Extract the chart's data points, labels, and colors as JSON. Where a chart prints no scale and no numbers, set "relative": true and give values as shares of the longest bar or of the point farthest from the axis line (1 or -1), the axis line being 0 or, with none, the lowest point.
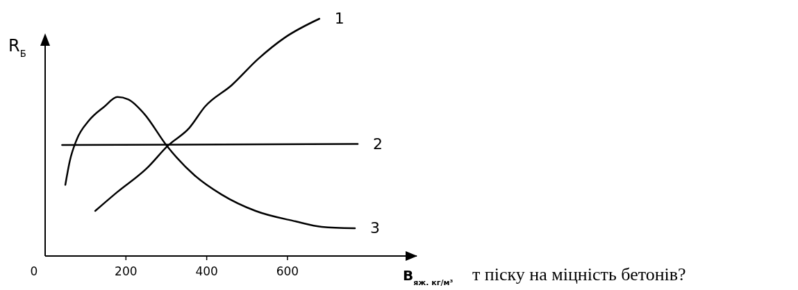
{
  "chart_data": {
    "type": "line",
    "relative": true,
    "xlabel": "В$_{яж. кг/м³}$",
    "ylabel": "R$_{Б}$",
    "xlim": [
      0,
      920
    ],
    "xticks": [
      {
        "value": 0,
        "label": "0"
      },
      200,
      400,
      600
    ],
    "annotations": [
      "т піску на міцність бетонів?"
    ],
    "grid": false,
    "series": [
      {
        "name": "1",
        "color": "#000000",
        "x": [
          124,
          179,
          252,
          304,
          357,
          396,
          462,
          527,
          593,
          679
        ],
        "values": [
          0.19,
          0.27,
          0.37,
          0.465,
          0.54,
          0.63,
          0.72,
          0.83,
          0.92,
          1.0
        ]
      },
      {
        "name": "2",
        "color": "#000000",
        "x": [
          42,
          774
        ],
        "values": [
          0.468,
          0.472
        ]
      },
      {
        "name": "3",
        "color": "#000000",
        "x": [
          50,
          61,
          78,
          108,
          147,
          179,
          206,
          245,
          301,
          370,
          436,
          521,
          620,
          685,
          767
        ],
        "values": [
          0.3,
          0.4,
          0.49,
          0.57,
          0.63,
          0.67,
          0.66,
          0.6,
          0.465,
          0.34,
          0.26,
          0.19,
          0.146,
          0.123,
          0.117
        ]
      }
    ]
  }
}
